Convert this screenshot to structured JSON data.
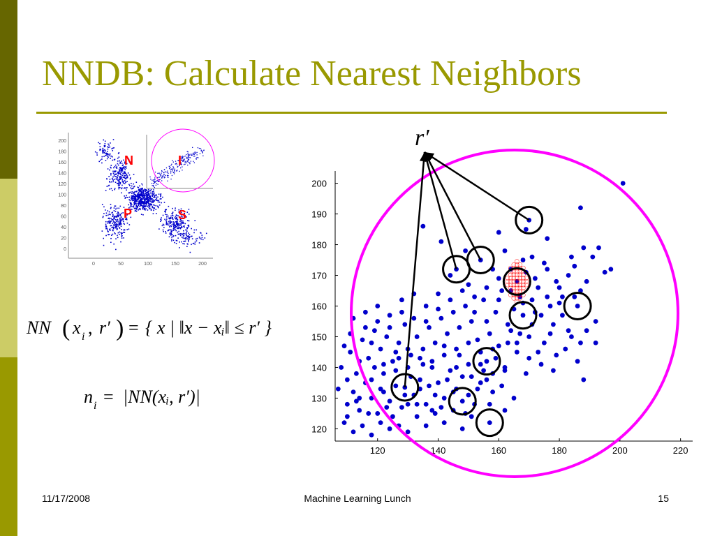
{
  "slide": {
    "title": "NNDB: Calculate Nearest Neighbors",
    "footer_date": "11/17/2008",
    "footer_center": "Machine Learning Lunch",
    "page_number": "15",
    "radius_symbol": "r′"
  },
  "colors": {
    "accent": "#999900",
    "band_dark": "#666600",
    "band_light": "#cccc66",
    "points": "#0000cc",
    "radius_circle": "#ff00ff",
    "quadrant_labels": "#ff0000"
  },
  "equations": {
    "nn_definition": {
      "lhs": "NN",
      "args": [
        "x",
        "i",
        "r′"
      ],
      "rhs": "{ x | ‖x − xᵢ‖ ≤ r′ }"
    },
    "count_definition": {
      "lhs": "n",
      "lhs_sub": "i",
      "rhs": "|NN(xᵢ, r′)|"
    }
  },
  "inset_plot": {
    "quadrant_labels": [
      "N",
      "I",
      "P",
      "S"
    ],
    "y_ticks": [
      "200",
      "180",
      "160",
      "140",
      "120",
      "100",
      "80",
      "60",
      "40",
      "20",
      "0"
    ],
    "x_ticks": [
      "0",
      "50",
      "100",
      "150",
      "200"
    ]
  },
  "chart_data": {
    "type": "scatter",
    "x_ticks": [
      "120",
      "140",
      "160",
      "180",
      "200",
      "220"
    ],
    "y_ticks": [
      "120",
      "130",
      "140",
      "150",
      "160",
      "170",
      "180",
      "190",
      "200"
    ],
    "xlim": [
      106,
      224
    ],
    "ylim": [
      116,
      204
    ],
    "grid": false,
    "highlighted_points": [
      {
        "x": 129,
        "y": 133.5
      },
      {
        "x": 148,
        "y": 129
      },
      {
        "x": 157,
        "y": 122
      },
      {
        "x": 156,
        "y": 142
      },
      {
        "x": 146,
        "y": 172
      },
      {
        "x": 154,
        "y": 175
      },
      {
        "x": 166,
        "y": 168
      },
      {
        "x": 168,
        "y": 157
      },
      {
        "x": 170,
        "y": 188
      },
      {
        "x": 186,
        "y": 160
      }
    ],
    "query_point": {
      "x": 166,
      "y": 168
    },
    "scattered_points": [
      [
        110,
        128
      ],
      [
        112,
        132
      ],
      [
        114,
        126
      ],
      [
        116,
        135
      ],
      [
        118,
        130
      ],
      [
        120,
        125
      ],
      [
        122,
        138
      ],
      [
        124,
        129
      ],
      [
        126,
        134
      ],
      [
        128,
        127
      ],
      [
        130,
        140
      ],
      [
        132,
        131
      ],
      [
        134,
        136
      ],
      [
        136,
        128
      ],
      [
        138,
        142
      ],
      [
        140,
        135
      ],
      [
        142,
        130
      ],
      [
        144,
        139
      ],
      [
        146,
        133
      ],
      [
        148,
        137
      ],
      [
        150,
        141
      ],
      [
        152,
        128
      ],
      [
        154,
        145
      ],
      [
        156,
        136
      ],
      [
        158,
        132
      ],
      [
        160,
        147
      ],
      [
        162,
        139
      ],
      [
        164,
        152
      ],
      [
        108,
        140
      ],
      [
        111,
        145
      ],
      [
        113,
        138
      ],
      [
        115,
        149
      ],
      [
        117,
        143
      ],
      [
        119,
        152
      ],
      [
        121,
        146
      ],
      [
        123,
        150
      ],
      [
        125,
        142
      ],
      [
        127,
        148
      ],
      [
        129,
        154
      ],
      [
        131,
        144
      ],
      [
        133,
        150
      ],
      [
        135,
        146
      ],
      [
        137,
        153
      ],
      [
        139,
        148
      ],
      [
        141,
        156
      ],
      [
        143,
        151
      ],
      [
        145,
        158
      ],
      [
        147,
        153
      ],
      [
        149,
        160
      ],
      [
        151,
        155
      ],
      [
        153,
        149
      ],
      [
        155,
        162
      ],
      [
        157,
        151
      ],
      [
        159,
        158
      ],
      [
        161,
        165
      ],
      [
        163,
        154
      ],
      [
        165,
        159
      ],
      [
        167,
        163
      ],
      [
        169,
        171
      ],
      [
        171,
        162
      ],
      [
        173,
        166
      ],
      [
        175,
        174
      ],
      [
        177,
        160
      ],
      [
        179,
        168
      ],
      [
        181,
        163
      ],
      [
        183,
        170
      ],
      [
        185,
        173
      ],
      [
        187,
        165
      ],
      [
        189,
        168
      ],
      [
        191,
        176
      ],
      [
        193,
        179
      ],
      [
        195,
        171
      ],
      [
        109,
        122
      ],
      [
        112,
        119
      ],
      [
        115,
        121
      ],
      [
        118,
        118
      ],
      [
        121,
        122
      ],
      [
        124,
        120
      ],
      [
        127,
        121
      ],
      [
        130,
        119
      ],
      [
        133,
        124
      ],
      [
        136,
        121
      ],
      [
        139,
        125
      ],
      [
        142,
        122
      ],
      [
        145,
        126
      ],
      [
        148,
        120
      ],
      [
        151,
        124
      ],
      [
        110,
        136
      ],
      [
        114,
        142
      ],
      [
        118,
        148
      ],
      [
        122,
        132
      ],
      [
        126,
        139
      ],
      [
        130,
        146
      ],
      [
        134,
        133
      ],
      [
        138,
        140
      ],
      [
        142,
        147
      ],
      [
        146,
        140
      ],
      [
        150,
        148
      ],
      [
        154,
        141
      ],
      [
        158,
        146
      ],
      [
        162,
        140
      ],
      [
        166,
        148
      ],
      [
        170,
        143
      ],
      [
        174,
        141
      ],
      [
        178,
        139
      ],
      [
        182,
        146
      ],
      [
        186,
        142
      ],
      [
        113,
        129
      ],
      [
        117,
        125
      ],
      [
        121,
        133
      ],
      [
        125,
        124
      ],
      [
        129,
        131
      ],
      [
        133,
        128
      ],
      [
        137,
        134
      ],
      [
        141,
        127
      ],
      [
        145,
        132
      ],
      [
        149,
        125
      ],
      [
        153,
        133
      ],
      [
        157,
        128
      ],
      [
        161,
        134
      ],
      [
        165,
        130
      ],
      [
        169,
        138
      ],
      [
        173,
        145
      ],
      [
        177,
        151
      ],
      [
        181,
        157
      ],
      [
        107,
        133
      ],
      [
        109,
        147
      ],
      [
        111,
        151
      ],
      [
        116,
        153
      ],
      [
        120,
        155
      ],
      [
        124,
        153
      ],
      [
        128,
        158
      ],
      [
        132,
        156
      ],
      [
        136,
        160
      ],
      [
        140,
        159
      ],
      [
        144,
        162
      ],
      [
        148,
        165
      ],
      [
        152,
        163
      ],
      [
        156,
        166
      ],
      [
        160,
        169
      ],
      [
        164,
        172
      ],
      [
        168,
        175
      ],
      [
        172,
        169
      ],
      [
        176,
        172
      ],
      [
        180,
        166
      ],
      [
        184,
        176
      ],
      [
        188,
        179
      ],
      [
        197,
        172
      ],
      [
        201,
        200
      ],
      [
        187,
        192
      ],
      [
        135,
        186
      ],
      [
        141,
        181
      ],
      [
        149,
        178
      ],
      [
        160,
        184
      ],
      [
        162,
        178
      ],
      [
        176,
        182
      ],
      [
        169,
        185
      ],
      [
        144,
        170
      ],
      [
        150,
        167
      ],
      [
        158,
        172
      ],
      [
        171,
        176
      ],
      [
        174,
        157
      ],
      [
        178,
        154
      ],
      [
        184,
        150
      ],
      [
        189,
        152
      ],
      [
        192,
        155
      ],
      [
        119,
        140
      ],
      [
        123,
        127
      ],
      [
        127,
        143
      ],
      [
        131,
        137
      ],
      [
        135,
        141
      ],
      [
        139,
        131
      ],
      [
        143,
        136
      ],
      [
        147,
        144
      ],
      [
        151,
        137
      ],
      [
        155,
        139
      ],
      [
        159,
        143
      ],
      [
        163,
        148
      ],
      [
        167,
        151
      ],
      [
        171,
        154
      ],
      [
        175,
        148
      ],
      [
        179,
        144
      ],
      [
        183,
        152
      ],
      [
        187,
        148
      ],
      [
        188,
        136
      ],
      [
        192,
        148
      ],
      [
        112,
        156
      ],
      [
        116,
        158
      ],
      [
        120,
        160
      ],
      [
        124,
        157
      ],
      [
        128,
        162
      ],
      [
        132,
        164
      ],
      [
        136,
        155
      ],
      [
        140,
        164
      ],
      [
        110,
        124
      ],
      [
        114,
        130
      ],
      [
        118,
        136
      ],
      [
        122,
        141
      ],
      [
        126,
        145
      ],
      [
        130,
        128
      ],
      [
        134,
        143
      ],
      [
        138,
        126
      ],
      [
        142,
        144
      ],
      [
        146,
        146
      ],
      [
        150,
        131
      ],
      [
        154,
        135
      ],
      [
        158,
        138
      ],
      [
        162,
        126
      ],
      [
        166,
        145
      ],
      [
        170,
        150
      ],
      [
        152,
        158
      ],
      [
        156,
        155
      ],
      [
        160,
        162
      ],
      [
        164,
        165
      ],
      [
        168,
        161
      ],
      [
        172,
        158
      ],
      [
        176,
        163
      ],
      [
        180,
        161
      ],
      [
        185,
        163
      ]
    ]
  }
}
